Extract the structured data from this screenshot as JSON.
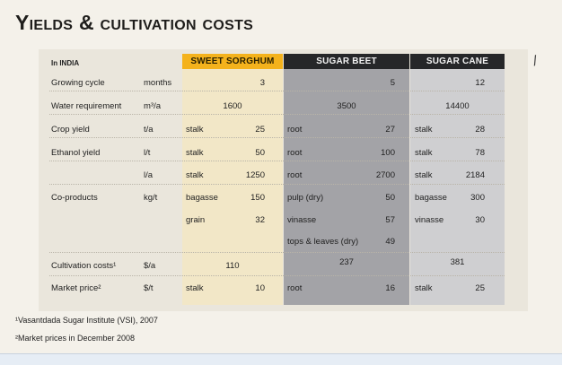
{
  "title": "Yields & cultivation costs",
  "region_label": "In INDIA",
  "columns": {
    "sorghum": "SWEET SORGHUM",
    "beet": "SUGAR BEET",
    "cane": "SUGAR CANE"
  },
  "rows": {
    "growing_cycle": {
      "label": "Growing cycle",
      "unit": "months",
      "sorghum": "3",
      "beet": "5",
      "cane": "12"
    },
    "water": {
      "label": "Water requirement",
      "unit": "m³/a",
      "sorghum": "1600",
      "beet": "3500",
      "cane": "14400"
    },
    "crop_yield": {
      "label": "Crop yield",
      "unit": "t/a",
      "sorghum_sub": "stalk",
      "sorghum": "25",
      "beet_sub": "root",
      "beet": "27",
      "cane_sub": "stalk",
      "cane": "28"
    },
    "ethanol_yield": {
      "label": "Ethanol yield",
      "unit": "l/t",
      "sorghum_sub": "stalk",
      "sorghum": "50",
      "beet_sub": "root",
      "beet": "100",
      "cane_sub": "stalk",
      "cane": "78"
    },
    "ethanol_per_area": {
      "unit": "l/a",
      "sorghum_sub": "stalk",
      "sorghum": "1250",
      "beet_sub": "root",
      "beet": "2700",
      "cane_sub": "stalk",
      "cane": "2184"
    },
    "coproducts": {
      "label": "Co-products",
      "unit": "kg/t",
      "sorghum_sub": "bagasse",
      "sorghum": "150",
      "beet_sub": "pulp (dry)",
      "beet": "50",
      "cane_sub": "bagasse",
      "cane": "300"
    },
    "coproducts2": {
      "sorghum_sub": "grain",
      "sorghum": "32",
      "beet_sub": "vinasse",
      "beet": "57",
      "cane_sub": "vinasse",
      "cane": "30"
    },
    "coproducts3": {
      "beet_sub": "tops & leaves (dry)",
      "beet": "49"
    },
    "cultivation": {
      "label": "Cultivation costs¹",
      "unit": "$/a",
      "sorghum": "110",
      "beet": "237",
      "cane": "381"
    },
    "market": {
      "label": "Market price²",
      "unit": "$/t",
      "sorghum_sub": "stalk",
      "sorghum": "10",
      "beet_sub": "root",
      "beet": "16",
      "cane_sub": "stalk",
      "cane": "25"
    }
  },
  "footnotes": [
    "¹Vasantdada Sugar Institute (VSI), 2007",
    "²Market prices in December 2008"
  ]
}
